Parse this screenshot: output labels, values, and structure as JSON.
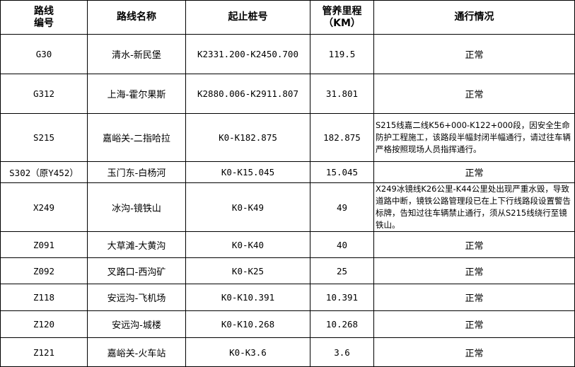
{
  "headers": [
    "路线\n编号",
    "路线名称",
    "起止桩号",
    "管养里程\n（KM）",
    "通行情况"
  ],
  "header_lines": [
    [
      "路线",
      "编号"
    ],
    [
      "路线名称"
    ],
    [
      "起止桩号"
    ],
    [
      "管养里程",
      "（KM）"
    ],
    [
      "通行情况"
    ]
  ],
  "rows": [
    {
      "code": "G30",
      "name": "清水-新民堡",
      "stake": "K2331.200-K2450.700",
      "km": "119.5",
      "status": "正常"
    },
    {
      "code": "G312",
      "name": "上海-霍尔果斯",
      "stake": "K2880.006-K2911.807",
      "km": "31.801",
      "status": "正常"
    },
    {
      "code": "S215",
      "name": "嘉峪关-二指哈拉",
      "stake": "K0-K182.875",
      "km": "182.875",
      "status": "S215线嘉二线K56+000-K122+000段，因安全生命防护工程施工，该路段半幅封闭半幅通行，请过往车辆严格按照现场人员指挥通行。"
    },
    {
      "code": "S302（原Y452）",
      "name": "玉门东-白杨河",
      "stake": "K0-K15.045",
      "km": "15.045",
      "status": "正常"
    },
    {
      "code": "X249",
      "name": "冰沟-镜铁山",
      "stake": "K0-K49",
      "km": "49",
      "status": "X249冰镜线K26公里-K44公里处出现严重水毁，导致道路中断，镜铁公路管理段已在上下行线路段设置警告标牌，告知过往车辆禁止通行，须从S215线绕行至镜铁山。"
    },
    {
      "code": "Z091",
      "name": "大草滩-大黄沟",
      "stake": "K0-K40",
      "km": "40",
      "status": "正常"
    },
    {
      "code": "Z092",
      "name": "叉路口-西沟矿",
      "stake": "K0-K25",
      "km": "25",
      "status": "正常"
    },
    {
      "code": "Z118",
      "name": "安远沟-飞机场",
      "stake": "K0-K10.391",
      "km": "10.391",
      "status": "正常"
    },
    {
      "code": "Z120",
      "name": "安远沟-城楼",
      "stake": "K0-K10.268",
      "km": "10.268",
      "status": "正常"
    },
    {
      "code": "Z121",
      "name": "嘉峪关-火车站",
      "stake": "K0-K3.6",
      "km": "3.6",
      "status": "正常"
    }
  ]
}
